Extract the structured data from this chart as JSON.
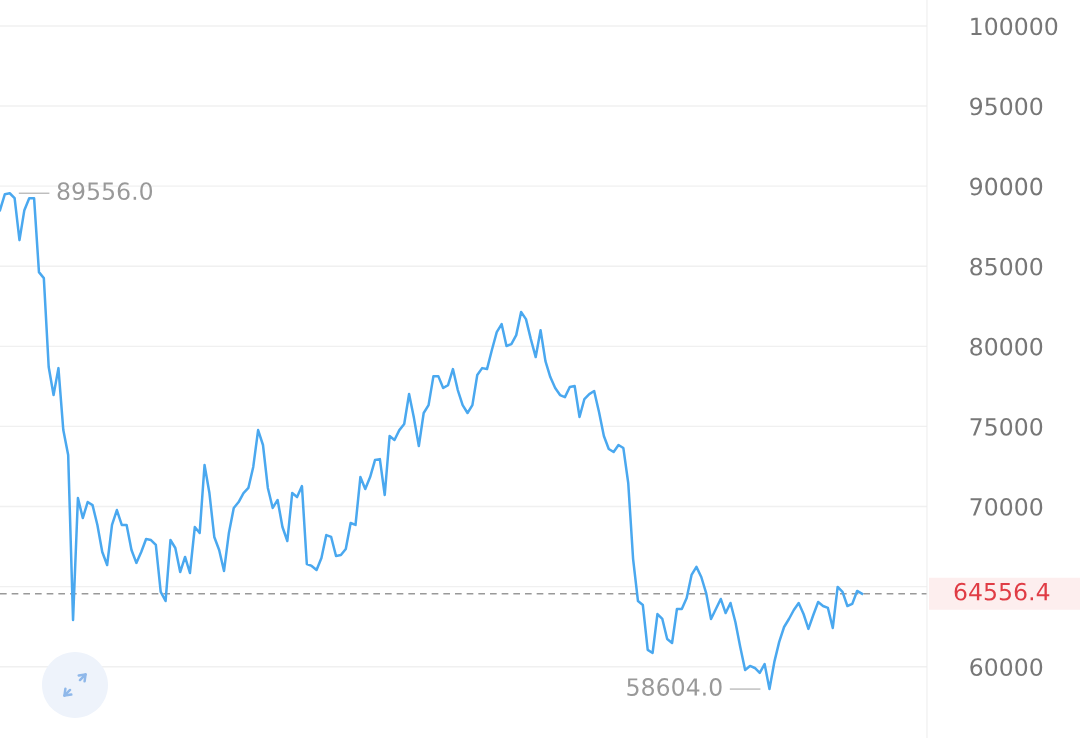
{
  "chart_data": {
    "type": "line",
    "categories": [
      null,
      null,
      null,
      null,
      null,
      null,
      null,
      null,
      null,
      null,
      null,
      null,
      null,
      null,
      null,
      null,
      null,
      null,
      null,
      null,
      null,
      null,
      null,
      null,
      null,
      null,
      null,
      null,
      null,
      null,
      null,
      null,
      null,
      null,
      null,
      null,
      null,
      null,
      null,
      null,
      null,
      null,
      null,
      null,
      null,
      null,
      null,
      null,
      null,
      null,
      null,
      null,
      null,
      null,
      null,
      null,
      null,
      null,
      null,
      null,
      null,
      null,
      null,
      null,
      null,
      null,
      null,
      null,
      null,
      null,
      null,
      null,
      null,
      null,
      null,
      null,
      null,
      null,
      null,
      null,
      null,
      null,
      null,
      null,
      null,
      null,
      null,
      null,
      null,
      null,
      null,
      null,
      null,
      null,
      null,
      null,
      null,
      null,
      null,
      null,
      null,
      null,
      null,
      null,
      null,
      null,
      null,
      null,
      null,
      null,
      null,
      null,
      null,
      null,
      null,
      null,
      null,
      null,
      null,
      null,
      null,
      null,
      null,
      null,
      null,
      null,
      null,
      null,
      null,
      null,
      null,
      null,
      null,
      null,
      null,
      null,
      null,
      null,
      null,
      null,
      null,
      null,
      null,
      null,
      null,
      null,
      null,
      null,
      null,
      null,
      null,
      null,
      null,
      null,
      null,
      null,
      null,
      null,
      null,
      null,
      null,
      null,
      null,
      null,
      null,
      null,
      null,
      null,
      null,
      null,
      null,
      null,
      null,
      null,
      null,
      null,
      null,
      null
    ],
    "series": [
      {
        "color": "#4aa8ef",
        "values": [
          88500,
          89500,
          89556,
          89250,
          86630,
          88500,
          89250,
          89250,
          84630,
          84260,
          78710,
          76960,
          78640,
          74770,
          73210,
          62920,
          70530,
          69280,
          70280,
          70090,
          68850,
          67160,
          66350,
          68850,
          69780,
          68850,
          68850,
          67290,
          66480,
          67160,
          67970,
          67910,
          67600,
          64670,
          64100,
          67910,
          67410,
          65910,
          66850,
          65850,
          68720,
          68350,
          72590,
          70840,
          68100,
          67290,
          65980,
          68350,
          69910,
          70280,
          70840,
          71160,
          72470,
          74770,
          73840,
          71160,
          69910,
          70410,
          68720,
          67850,
          70840,
          70590,
          71280,
          66410,
          66290,
          66040,
          66790,
          68220,
          68100,
          66910,
          66970,
          67350,
          68970,
          68850,
          71840,
          71090,
          71840,
          72900,
          72960,
          70720,
          74400,
          74150,
          74770,
          75150,
          77020,
          75520,
          73780,
          75840,
          76330,
          78140,
          78140,
          77400,
          77580,
          78580,
          77270,
          76330,
          75840,
          76330,
          78210,
          78640,
          78580,
          79770,
          80890,
          81390,
          80020,
          80140,
          80700,
          82140,
          81700,
          80450,
          79330,
          81010,
          79080,
          78080,
          77400,
          76960,
          76830,
          77460,
          77520,
          75590,
          76710,
          77020,
          77210,
          75900,
          74400,
          73590,
          73400,
          73840,
          73650,
          71470,
          66720,
          64100,
          63850,
          61050,
          60860,
          63290,
          62980,
          61730,
          61480,
          63600,
          63600,
          64290,
          65730,
          66230,
          65600,
          64600,
          62980,
          63600,
          64230,
          63350,
          63980,
          62790,
          61230,
          59800,
          60050,
          59920,
          59610,
          60170,
          58604,
          60300,
          61550,
          62480,
          62980,
          63540,
          63980,
          63290,
          62360,
          63230,
          64040,
          63790,
          63670,
          62420,
          64980,
          64670,
          63790,
          63920,
          64730,
          64556.4
        ]
      }
    ],
    "ylim": [
      55550,
      101620
    ],
    "yticks": [
      60000,
      {
        "value": 65000,
        "label": null
      },
      70000,
      75000,
      80000,
      85000,
      90000,
      95000,
      100000
    ],
    "grid": "y",
    "tick_labels": "y",
    "marker": "none",
    "line_style": "solid",
    "ref_lines": [
      {
        "axis": "y",
        "value": 64556.4,
        "label": "64556.4",
        "color": "#999999",
        "line_style": "dashed"
      }
    ],
    "annotations": [
      "89556.0",
      "58604.0"
    ]
  }
}
